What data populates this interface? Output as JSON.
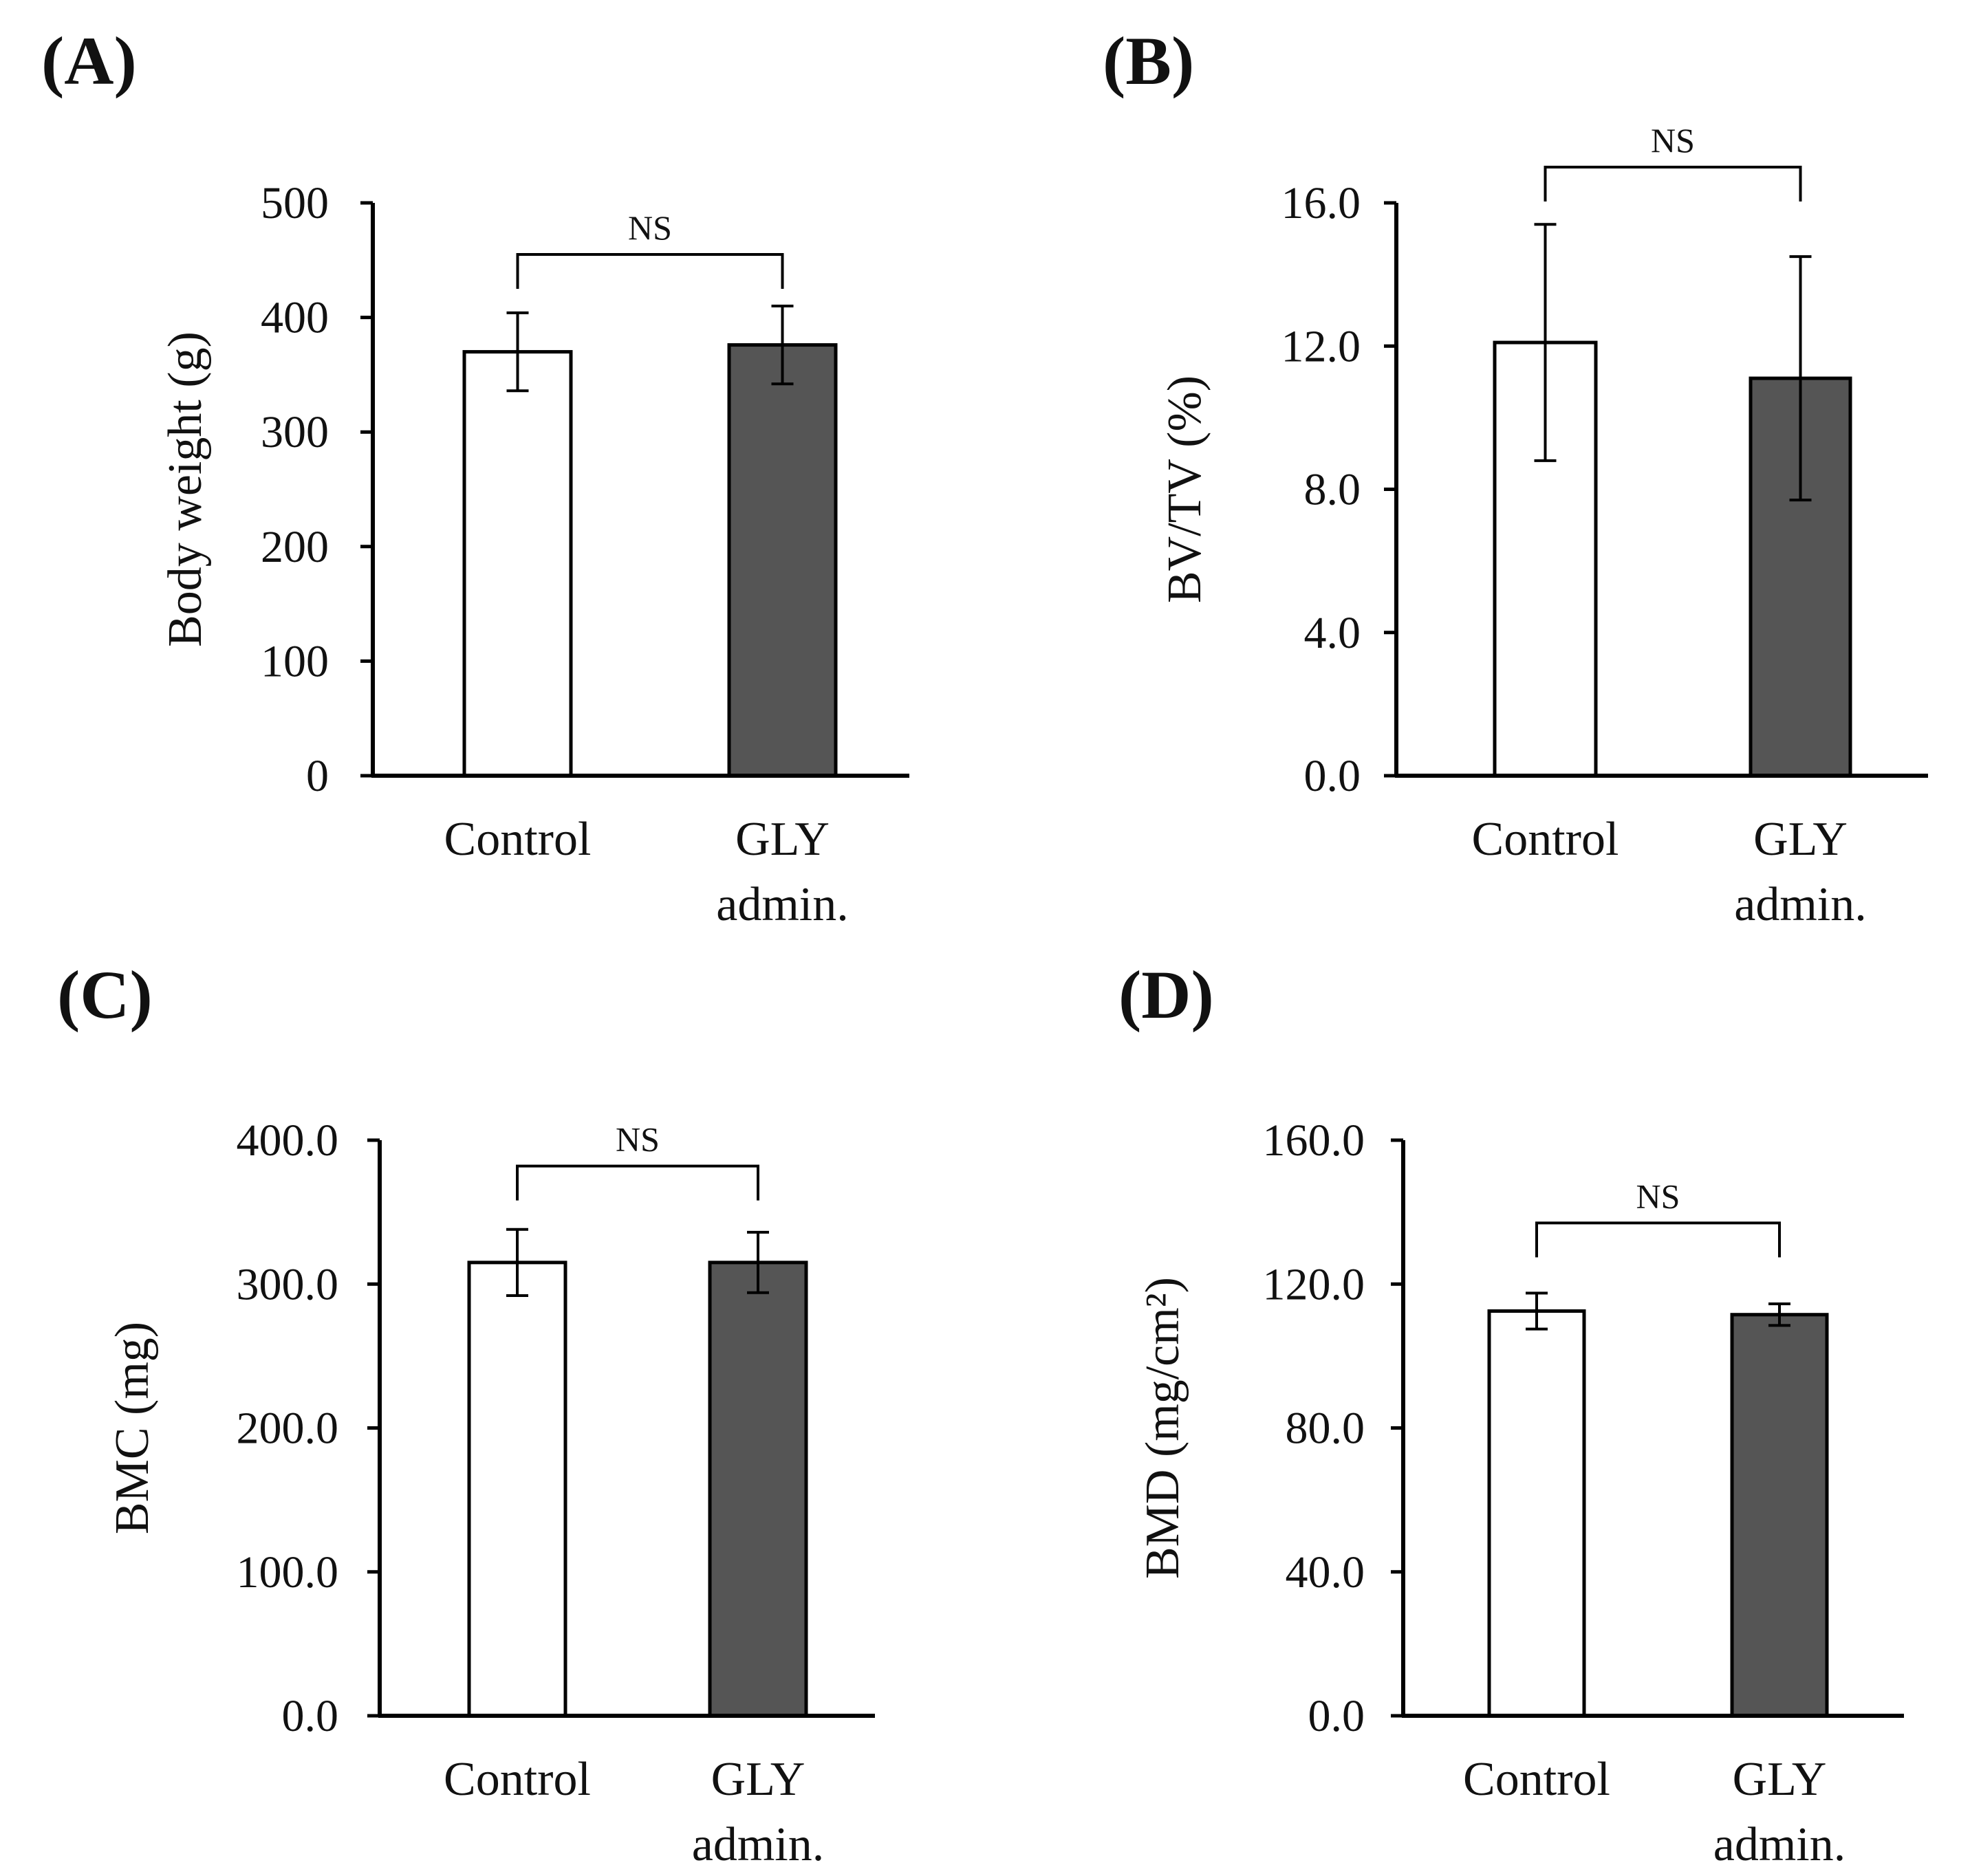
{
  "figure": {
    "bar_colors": {
      "Control": "#ffffff",
      "GLY admin.": "#555555"
    },
    "edge_color": "#000000"
  },
  "chart_data": [
    {
      "panel": "(A)",
      "type": "bar",
      "categories": [
        "Control",
        "GLY admin."
      ],
      "values": [
        370,
        376
      ],
      "errors": [
        34,
        34
      ],
      "ylabel": "Body weight (g)",
      "ylim": [
        0,
        500
      ],
      "yticks": [
        0,
        100,
        200,
        300,
        400,
        500
      ],
      "ytick_labels": [
        "0",
        "100",
        "200",
        "300",
        "400",
        "500"
      ],
      "significance": "NS",
      "bracket_y": 455
    },
    {
      "panel": "(B)",
      "type": "bar",
      "categories": [
        "Control",
        "GLY admin."
      ],
      "values": [
        12.1,
        11.1
      ],
      "errors": [
        3.3,
        3.4
      ],
      "ylabel": "BV/TV (%)",
      "ylim": [
        0,
        16
      ],
      "yticks": [
        0,
        4,
        8,
        12,
        16
      ],
      "ytick_labels": [
        "0.0",
        "4.0",
        "8.0",
        "12.0",
        "16.0"
      ],
      "significance": "NS",
      "bracket_y": 17.0
    },
    {
      "panel": "(C)",
      "type": "bar",
      "categories": [
        "Control",
        "GLY admin."
      ],
      "values": [
        315,
        315
      ],
      "errors": [
        23,
        21
      ],
      "ylabel": "BMC (mg)",
      "ylim": [
        0,
        400
      ],
      "yticks": [
        0,
        100,
        200,
        300,
        400
      ],
      "ytick_labels": [
        "0.0",
        "100.0",
        "200.0",
        "300.0",
        "400.0"
      ],
      "significance": "NS",
      "bracket_y": 382
    },
    {
      "panel": "(D)",
      "type": "bar",
      "categories": [
        "Control",
        "GLY admin."
      ],
      "values": [
        112.5,
        111.5
      ],
      "errors": [
        5,
        3
      ],
      "ylabel": "BMD (mg/cm²)",
      "ylim": [
        0,
        160
      ],
      "yticks": [
        0,
        40,
        80,
        120,
        160
      ],
      "ytick_labels": [
        "0.0",
        "40.0",
        "80.0",
        "120.0",
        "160.0"
      ],
      "significance": "NS",
      "bracket_y": 137
    }
  ]
}
